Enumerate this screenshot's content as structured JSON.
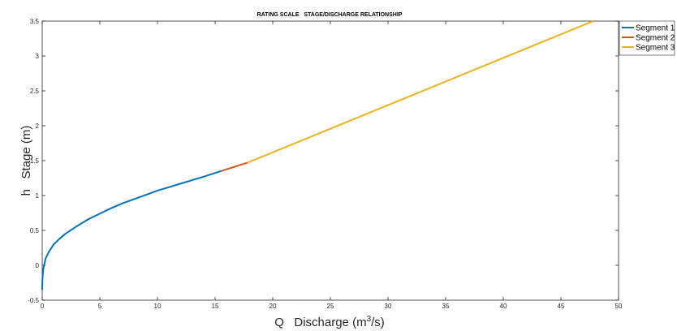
{
  "chart_data": {
    "type": "line",
    "title": "RATING SCALE   STAGE/DISCHARGE RELATIONSHIP",
    "xlabel": {
      "main": "Q   Discharge (m",
      "sup": "3",
      "tail": "/s)"
    },
    "ylabel": "h   Stage (m)",
    "xlim": [
      0,
      50
    ],
    "ylim": [
      -0.5,
      3.5
    ],
    "x_ticks": [
      0,
      5,
      10,
      15,
      20,
      25,
      30,
      35,
      40,
      45,
      50
    ],
    "x_tick_labels": [
      "0",
      "5",
      "10",
      "15",
      "20",
      "25",
      "30",
      "35",
      "40",
      "45",
      "50"
    ],
    "y_ticks": [
      -0.5,
      0,
      0.5,
      1,
      1.5,
      2,
      2.5,
      3,
      3.5
    ],
    "y_tick_labels": [
      "-0.5",
      "0",
      "0.5",
      "1",
      "1.5",
      "2",
      "2.5",
      "3",
      "3.5"
    ],
    "grid": false,
    "legend_position": "top-right-outside",
    "series": [
      {
        "name": "Segment 1",
        "color": "#0072BD",
        "x": [
          0,
          0.02,
          0.1,
          0.3,
          0.6,
          1.0,
          1.5,
          2.0,
          3.0,
          4.0,
          5.0,
          6.0,
          7.0,
          8.0,
          9.0,
          10.0,
          11.0,
          12.0,
          13.0,
          14.0,
          15.5
        ],
        "y": [
          -0.35,
          -0.2,
          -0.05,
          0.1,
          0.2,
          0.3,
          0.38,
          0.45,
          0.56,
          0.66,
          0.74,
          0.82,
          0.89,
          0.95,
          1.01,
          1.07,
          1.12,
          1.17,
          1.22,
          1.27,
          1.35
        ]
      },
      {
        "name": "Segment 2",
        "color": "#D95319",
        "x": [
          15.5,
          17.8
        ],
        "y": [
          1.35,
          1.47
        ]
      },
      {
        "name": "Segment 3",
        "color": "#EDB120",
        "x": [
          17.8,
          47.8
        ],
        "y": [
          1.47,
          3.5
        ]
      }
    ]
  }
}
